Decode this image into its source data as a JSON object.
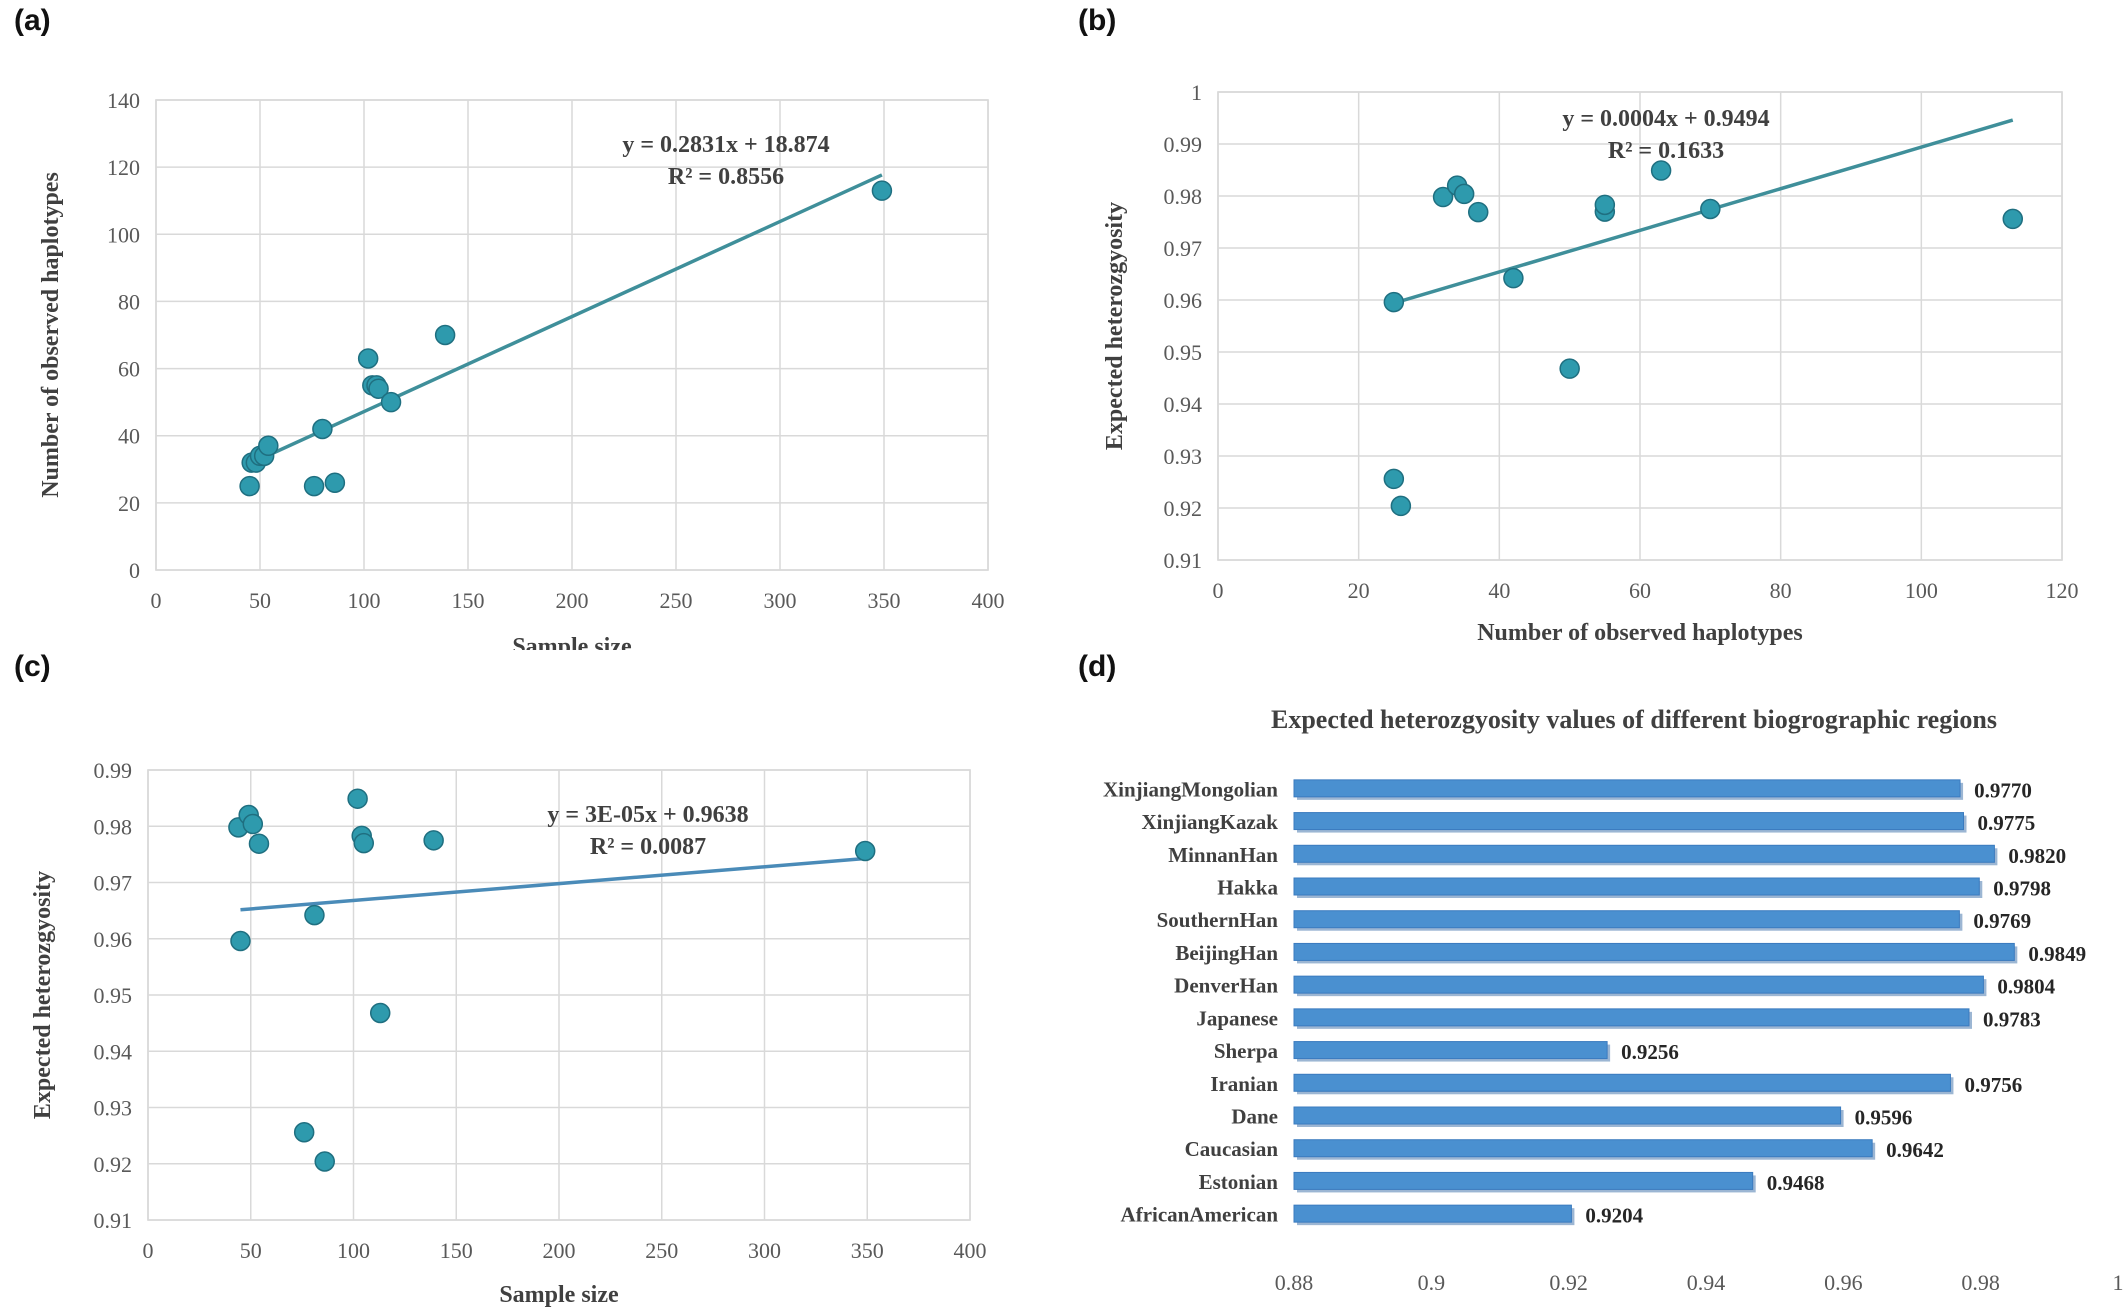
{
  "panels": {
    "a": {
      "label": "(a)",
      "chart_data": {
        "type": "scatter",
        "xlabel": "Sample size",
        "ylabel": "Number of observed haplotypes",
        "xlim": [
          0,
          400
        ],
        "ylim": [
          0,
          140
        ],
        "xticks": [
          "0",
          "50",
          "100",
          "150",
          "200",
          "250",
          "300",
          "350",
          "400"
        ],
        "yticks": [
          "0",
          "20",
          "40",
          "60",
          "80",
          "100",
          "120",
          "140"
        ],
        "grid": true,
        "marker_color": "#2e9aad",
        "trendline_color": "#3f8f9a",
        "points": [
          [
            45,
            25
          ],
          [
            46,
            32
          ],
          [
            48,
            32
          ],
          [
            50,
            34
          ],
          [
            52,
            34
          ],
          [
            54,
            37
          ],
          [
            76,
            25
          ],
          [
            80,
            42
          ],
          [
            86,
            26
          ],
          [
            102,
            63
          ],
          [
            104,
            55
          ],
          [
            106,
            55
          ],
          [
            107,
            54
          ],
          [
            113,
            50
          ],
          [
            139,
            70
          ],
          [
            349,
            113
          ]
        ],
        "trendline": {
          "slope": 0.2831,
          "intercept": 18.874,
          "x_range": [
            45,
            349
          ]
        },
        "equation": "y = 0.2831x + 18.874",
        "r2_text": "R² = 0.8556"
      }
    },
    "b": {
      "label": "(b)",
      "chart_data": {
        "type": "scatter",
        "xlabel": "Number of observed haplotypes",
        "ylabel": "Expected heterozgyosity",
        "xlim": [
          0,
          120
        ],
        "ylim": [
          0.91,
          1.0
        ],
        "xticks": [
          "0",
          "20",
          "40",
          "60",
          "80",
          "100",
          "120"
        ],
        "yticks": [
          "0.91",
          "0.92",
          "0.93",
          "0.94",
          "0.95",
          "0.96",
          "0.97",
          "0.98",
          "0.99",
          "1"
        ],
        "grid": true,
        "marker_color": "#2e9aad",
        "trendline_color": "#3f8f9a",
        "points": [
          [
            25,
            0.9596
          ],
          [
            25,
            0.9256
          ],
          [
            26,
            0.9204
          ],
          [
            32,
            0.9798
          ],
          [
            34,
            0.982
          ],
          [
            35,
            0.9804
          ],
          [
            37,
            0.9769
          ],
          [
            42,
            0.9642
          ],
          [
            50,
            0.9468
          ],
          [
            55,
            0.977
          ],
          [
            55,
            0.9783
          ],
          [
            63,
            0.9849
          ],
          [
            70,
            0.9775
          ],
          [
            113,
            0.9756
          ]
        ],
        "trendline": {
          "slope": 0.0004,
          "intercept": 0.9494,
          "x_range": [
            25,
            113
          ]
        },
        "equation": "y = 0.0004x + 0.9494",
        "r2_text": "R² = 0.1633"
      }
    },
    "c": {
      "label": "(c)",
      "chart_data": {
        "type": "scatter",
        "xlabel": "Sample size",
        "ylabel": "Expected heterozgyosity",
        "xlim": [
          0,
          400
        ],
        "ylim": [
          0.91,
          0.99
        ],
        "xticks": [
          "0",
          "50",
          "100",
          "150",
          "200",
          "250",
          "300",
          "350",
          "400"
        ],
        "yticks": [
          "0.91",
          "0.92",
          "0.93",
          "0.94",
          "0.95",
          "0.96",
          "0.97",
          "0.98",
          "0.99"
        ],
        "grid": true,
        "marker_color": "#2e9aad",
        "trendline_color": "#4a8bb8",
        "points": [
          [
            44,
            0.9798
          ],
          [
            45,
            0.9596
          ],
          [
            49,
            0.982
          ],
          [
            51,
            0.9804
          ],
          [
            54,
            0.9769
          ],
          [
            76,
            0.9256
          ],
          [
            81,
            0.9642
          ],
          [
            86,
            0.9204
          ],
          [
            102,
            0.9849
          ],
          [
            104,
            0.9783
          ],
          [
            105,
            0.977
          ],
          [
            113,
            0.9468
          ],
          [
            139,
            0.9775
          ],
          [
            349,
            0.9756
          ]
        ],
        "trendline": {
          "slope": 3e-05,
          "intercept": 0.9638,
          "x_range": [
            45,
            349
          ]
        },
        "equation": "y = 3E-05x + 0.9638",
        "r2_text": "R² = 0.0087"
      }
    },
    "d": {
      "label": "(d)",
      "chart_data": {
        "type": "bar",
        "orientation": "horizontal",
        "title": "Expected heterozgyosity values of different biogrographic regions",
        "xlim": [
          0.88,
          1.0
        ],
        "xticks": [
          "0.88",
          "0.9",
          "0.92",
          "0.94",
          "0.96",
          "0.98",
          "1"
        ],
        "bar_color": "#4a90d0",
        "categories": [
          "XinjiangMongolian",
          "XinjiangKazak",
          "MinnanHan",
          "Hakka",
          "SouthernHan",
          "BeijingHan",
          "DenverHan",
          "Japanese",
          "Sherpa",
          "Iranian",
          "Dane",
          "Caucasian",
          "Estonian",
          "AfricanAmerican"
        ],
        "values": [
          0.977,
          0.9775,
          0.982,
          0.9798,
          0.9769,
          0.9849,
          0.9804,
          0.9783,
          0.9256,
          0.9756,
          0.9596,
          0.9642,
          0.9468,
          0.9204
        ],
        "value_labels": [
          "0.9770",
          "0.9775",
          "0.9820",
          "0.9798",
          "0.9769",
          "0.9849",
          "0.9804",
          "0.9783",
          "0.9256",
          "0.9756",
          "0.9596",
          "0.9642",
          "0.9468",
          "0.9204"
        ]
      }
    }
  }
}
